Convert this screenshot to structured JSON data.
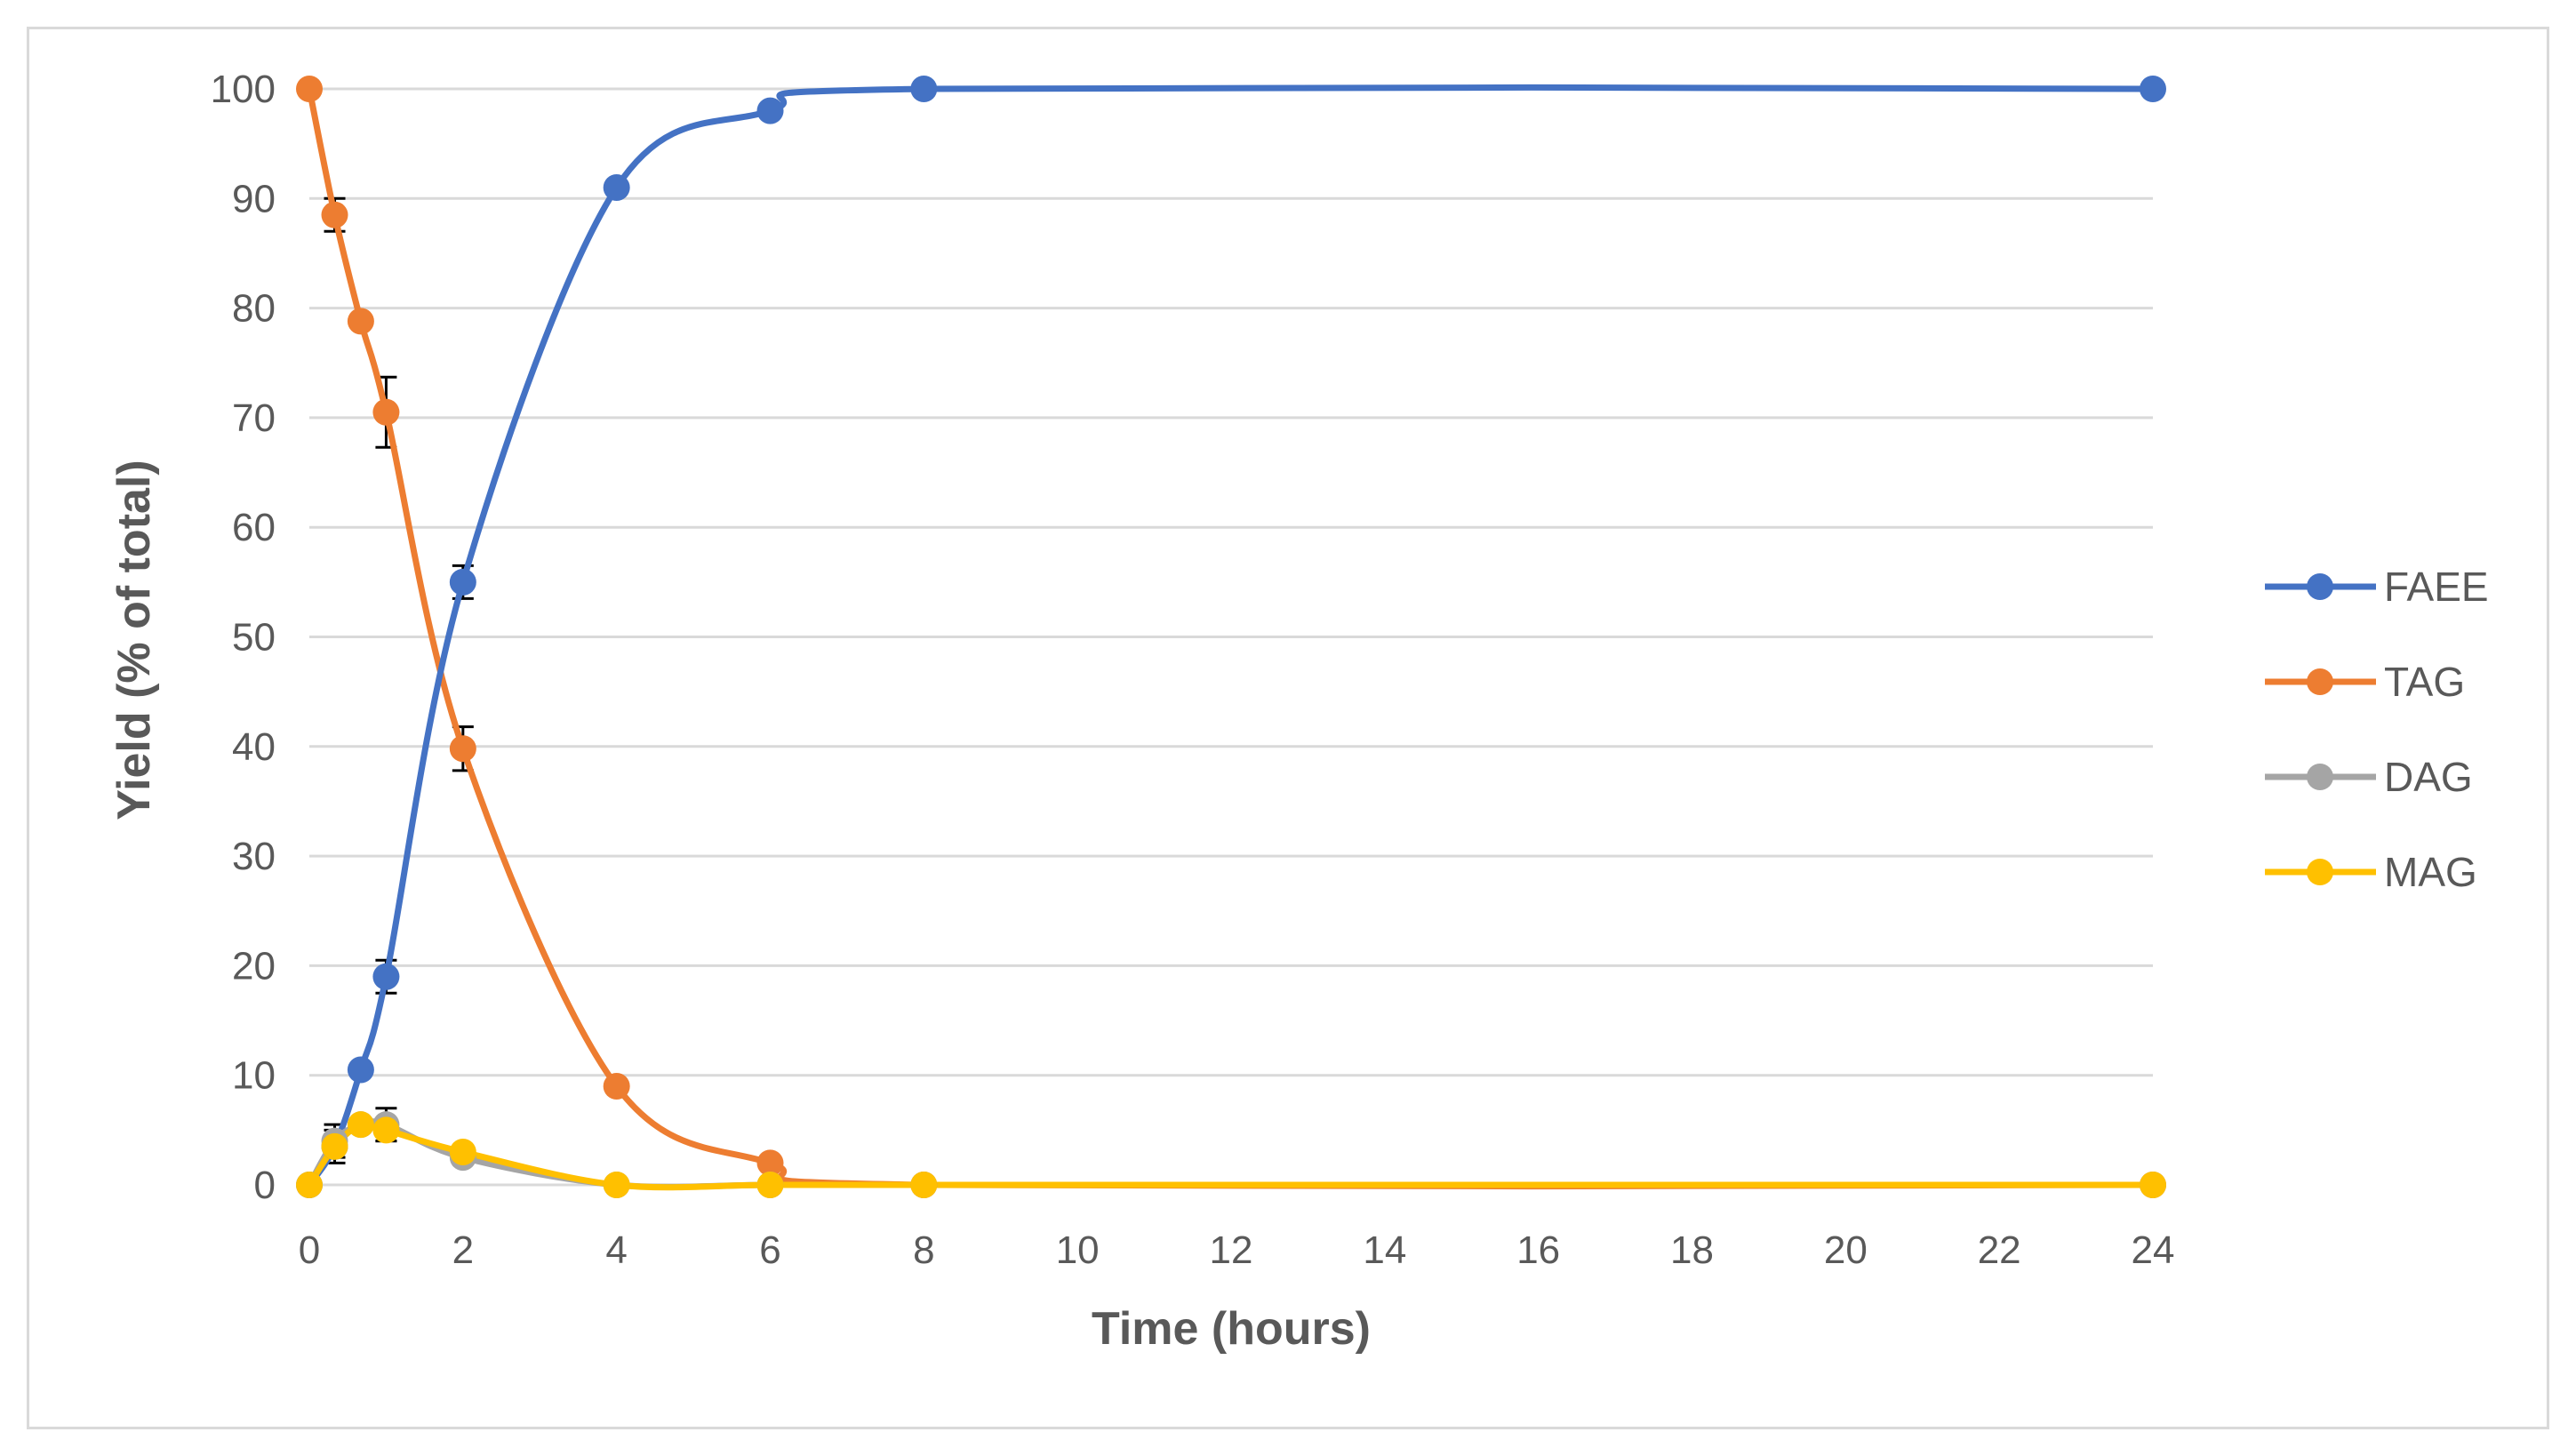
{
  "chart_data": {
    "type": "line",
    "title": "",
    "xlabel": "Time (hours)",
    "ylabel": "Yield (% of total)",
    "x_ticks": [
      "0",
      "2",
      "4",
      "6",
      "8",
      "10",
      "12",
      "14",
      "16",
      "18",
      "20",
      "22",
      "24"
    ],
    "y_ticks": [
      "0",
      "10",
      "20",
      "30",
      "40",
      "50",
      "60",
      "70",
      "80",
      "90",
      "100"
    ],
    "xlim": [
      0,
      24
    ],
    "ylim": [
      0,
      100
    ],
    "grid": "horizontal",
    "legend_position": "right",
    "series": [
      {
        "name": "FAEE",
        "color": "#4472C4",
        "x": [
          0,
          0.33,
          0.67,
          1,
          2,
          4,
          6,
          8,
          24
        ],
        "y": [
          0,
          3.5,
          10.5,
          19,
          55,
          91,
          98,
          100,
          100
        ],
        "error": [
          0,
          1.5,
          0,
          1.5,
          1.5,
          0,
          0,
          0,
          0
        ]
      },
      {
        "name": "TAG",
        "color": "#ED7D31",
        "x": [
          0,
          0.33,
          0.67,
          1,
          2,
          4,
          6,
          8,
          24
        ],
        "y": [
          100,
          88.5,
          78.8,
          70.5,
          39.8,
          9,
          2,
          0,
          0
        ],
        "error": [
          0,
          1.5,
          0,
          3.2,
          2,
          0,
          0,
          0,
          0
        ]
      },
      {
        "name": "DAG",
        "color": "#A5A5A5",
        "x": [
          0,
          0.33,
          0.67,
          1,
          2,
          4,
          6,
          8,
          24
        ],
        "y": [
          0,
          4,
          5.5,
          5.5,
          2.5,
          0,
          0,
          0,
          0
        ],
        "error": [
          0,
          1.5,
          0,
          1.5,
          0,
          0,
          0,
          0,
          0
        ]
      },
      {
        "name": "MAG",
        "color": "#FFC000",
        "x": [
          0,
          0.33,
          0.67,
          1,
          2,
          4,
          6,
          8,
          24
        ],
        "y": [
          0,
          3.5,
          5.5,
          5,
          3,
          0,
          0,
          0,
          0
        ],
        "error": [
          0,
          0,
          0,
          1,
          0,
          0,
          0,
          0,
          0
        ]
      }
    ]
  }
}
